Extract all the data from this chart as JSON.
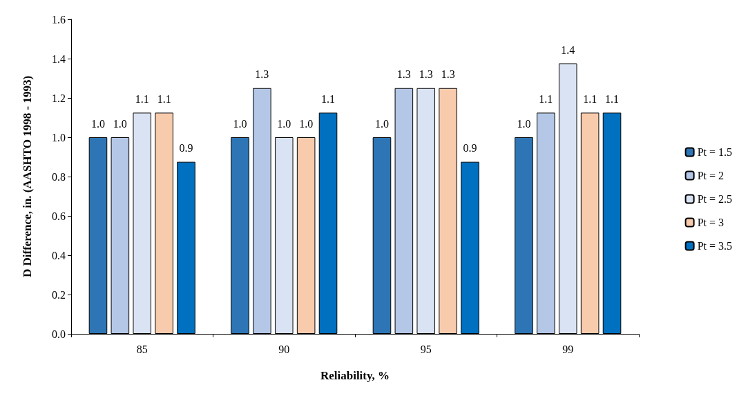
{
  "chart_data": {
    "type": "bar",
    "xlabel": "Reliability, %",
    "ylabel": "D Difference, in. (AASHTO 1998 - 1993)",
    "categories": [
      "85",
      "90",
      "95",
      "99"
    ],
    "series": [
      {
        "name": "Pt = 1.5",
        "color": "#2e75b6",
        "values": [
          1.0,
          1.0,
          1.0,
          1.0
        ],
        "value_labels": [
          "1.0",
          "1.0",
          "1.0",
          "1.0"
        ]
      },
      {
        "name": "Pt = 2",
        "color": "#b4c7e7",
        "values": [
          1.0,
          1.25,
          1.25,
          1.125
        ],
        "value_labels": [
          "1.0",
          "1.3",
          "1.3",
          "1.1"
        ]
      },
      {
        "name": "Pt = 2.5",
        "color": "#dae3f3",
        "values": [
          1.125,
          1.0,
          1.25,
          1.375
        ],
        "value_labels": [
          "1.1",
          "1.0",
          "1.3",
          "1.4"
        ]
      },
      {
        "name": "Pt = 3",
        "color": "#f8cbad",
        "values": [
          1.125,
          1.0,
          1.25,
          1.125
        ],
        "value_labels": [
          "1.1",
          "1.0",
          "1.3",
          "1.1"
        ]
      },
      {
        "name": "Pt = 3.5",
        "color": "#0070c0",
        "values": [
          0.875,
          1.125,
          0.875,
          1.125
        ],
        "value_labels": [
          "0.9",
          "1.1",
          "0.9",
          "1.1"
        ]
      }
    ],
    "ylim": [
      0,
      1.6
    ],
    "yticks": [
      {
        "value": 0,
        "label": "0.0"
      },
      0.2,
      0.4,
      0.6,
      0.8,
      {
        "value": 1,
        "label": "1.0"
      },
      1.2,
      1.4,
      1.6
    ],
    "grid": false,
    "legend": "right"
  }
}
